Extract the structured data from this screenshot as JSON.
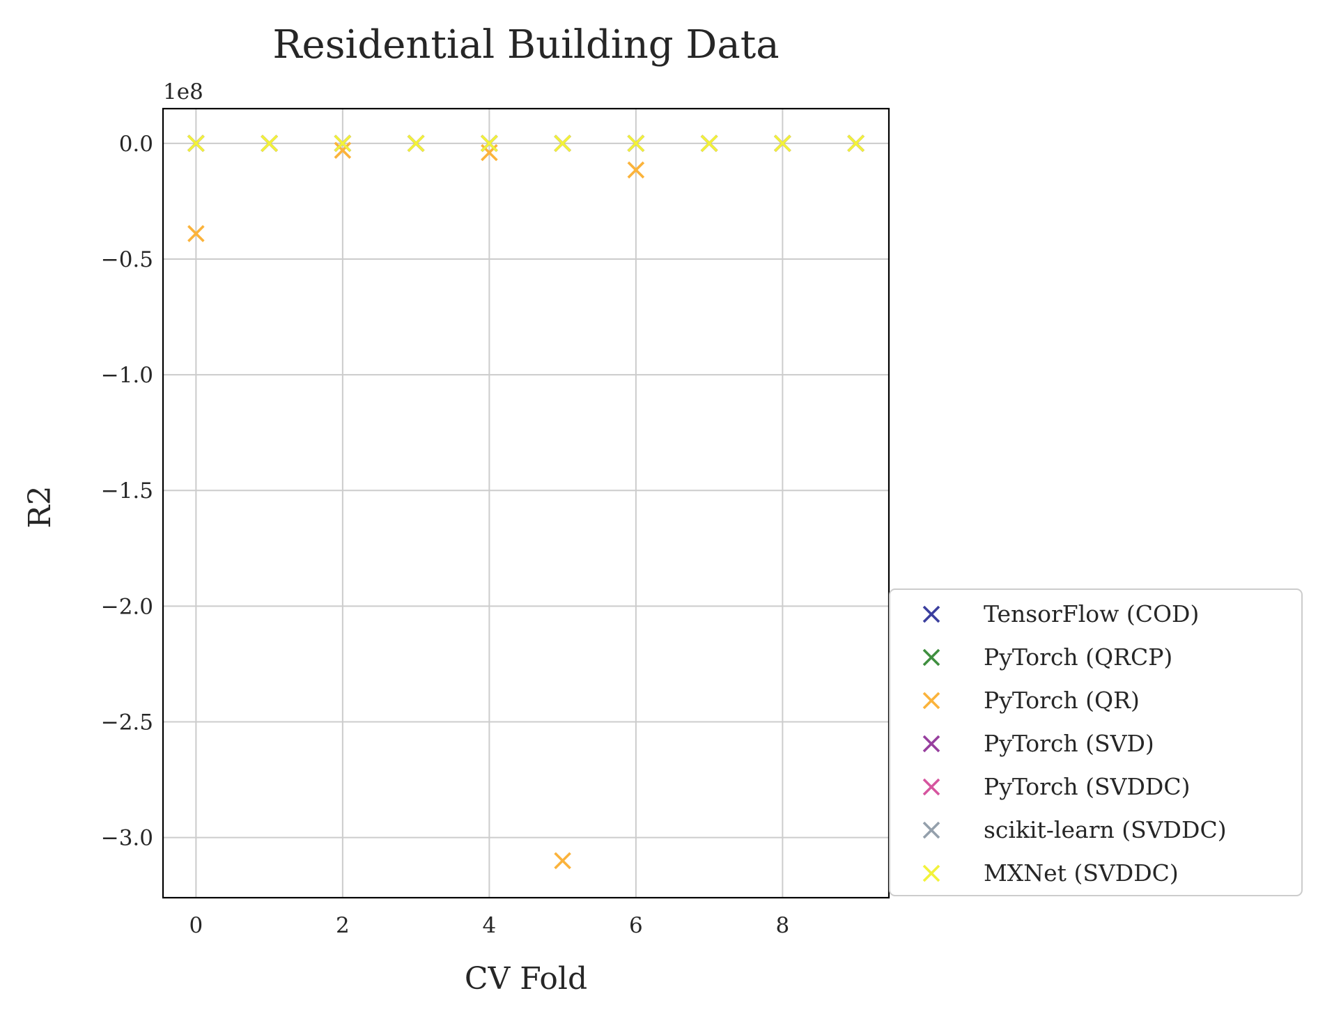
{
  "chart_data": {
    "type": "scatter",
    "title": "Residential Building Data",
    "xlabel": "CV Fold",
    "ylabel": "R2",
    "offset_text": "1e8",
    "xlim": [
      -0.45,
      9.45
    ],
    "ylim": [
      -3.26,
      0.15
    ],
    "xticks": [
      0,
      2,
      4,
      6,
      8
    ],
    "xtick_labels": [
      "0",
      "2",
      "4",
      "6",
      "8"
    ],
    "yticks": [
      0.0,
      -0.5,
      -1.0,
      -1.5,
      -2.0,
      -2.5,
      -3.0
    ],
    "ytick_labels": [
      "0.0",
      "−0.5",
      "−1.0",
      "−1.5",
      "−2.0",
      "−2.5",
      "−3.0"
    ],
    "y_unit_multiplier": 100000000,
    "grid": true,
    "legend_position": "lower-right, outside plot area",
    "marker": "x",
    "series": [
      {
        "name": "TensorFlow (COD)",
        "color": "#3b3f9e",
        "x": [
          0,
          1,
          2,
          3,
          4,
          5,
          6,
          7,
          8,
          9
        ],
        "y": [
          0,
          0,
          0,
          0,
          0,
          0,
          0,
          0,
          0,
          0
        ]
      },
      {
        "name": "PyTorch (QRCP)",
        "color": "#3f8f3f",
        "x": [
          0,
          1,
          2,
          3,
          4,
          5,
          6,
          7,
          8,
          9
        ],
        "y": [
          0,
          0,
          0,
          0,
          0,
          0,
          0,
          0,
          0,
          0
        ]
      },
      {
        "name": "PyTorch (QR)",
        "color": "#fbb33b",
        "x": [
          0,
          1,
          2,
          3,
          4,
          5,
          6,
          7,
          8,
          9
        ],
        "y": [
          -0.39,
          0,
          -0.03,
          0,
          -0.04,
          -3.1,
          -0.115,
          0,
          0,
          0
        ]
      },
      {
        "name": "PyTorch (SVD)",
        "color": "#973f9e",
        "x": [
          0,
          1,
          2,
          3,
          4,
          5,
          6,
          7,
          8,
          9
        ],
        "y": [
          0,
          0,
          0,
          0,
          0,
          0,
          0,
          0,
          0,
          0
        ]
      },
      {
        "name": "PyTorch (SVDDC)",
        "color": "#d6559f",
        "x": [
          0,
          1,
          2,
          3,
          4,
          5,
          6,
          7,
          8,
          9
        ],
        "y": [
          0,
          0,
          0,
          0,
          0,
          0,
          0,
          0,
          0,
          0
        ]
      },
      {
        "name": "scikit-learn (SVDDC)",
        "color": "#94a0ac",
        "x": [
          0,
          1,
          2,
          3,
          4,
          5,
          6,
          7,
          8,
          9
        ],
        "y": [
          0,
          0,
          0,
          0,
          0,
          0,
          0,
          0,
          0,
          0
        ]
      },
      {
        "name": "MXNet (SVDDC)",
        "color": "#f2f23a",
        "x": [
          0,
          1,
          2,
          3,
          4,
          5,
          6,
          7,
          8,
          9
        ],
        "y": [
          0,
          0,
          0,
          0,
          0,
          0,
          0,
          0,
          0,
          0
        ]
      }
    ]
  }
}
